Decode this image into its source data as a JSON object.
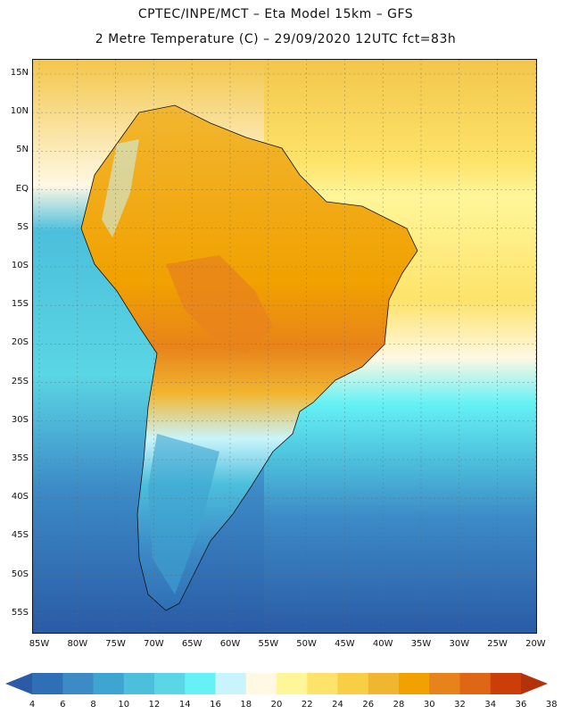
{
  "header": {
    "line1": "CPTEC/INPE/MCT –  Eta Model 15km – GFS",
    "line2": "2 Metre Temperature (C) – 29/09/2020 12UTC fct=83h"
  },
  "map": {
    "lat_labels": [
      "15N",
      "10N",
      "5N",
      "EQ",
      "5S",
      "10S",
      "15S",
      "20S",
      "25S",
      "30S",
      "35S",
      "40S",
      "45S",
      "50S",
      "55S"
    ],
    "lon_labels": [
      "85W",
      "80W",
      "75W",
      "70W",
      "65W",
      "60W",
      "55W",
      "50W",
      "45W",
      "40W",
      "35W",
      "30W",
      "25W",
      "20W"
    ]
  },
  "colorbar": {
    "labels": [
      "4",
      "6",
      "8",
      "10",
      "12",
      "14",
      "16",
      "18",
      "20",
      "22",
      "24",
      "26",
      "28",
      "30",
      "32",
      "34",
      "36",
      "38"
    ],
    "colors": [
      "#2a5ba6",
      "#2e6fb5",
      "#3c8ac6",
      "#3ea4d0",
      "#4cbfdc",
      "#5ad6e4",
      "#65f1f5",
      "#c9f4fb",
      "#fff8e3",
      "#fff69a",
      "#fde36a",
      "#f8ce45",
      "#f1b630",
      "#f1a100",
      "#e8831b",
      "#df6615",
      "#cc3e08",
      "#b3320a"
    ]
  }
}
